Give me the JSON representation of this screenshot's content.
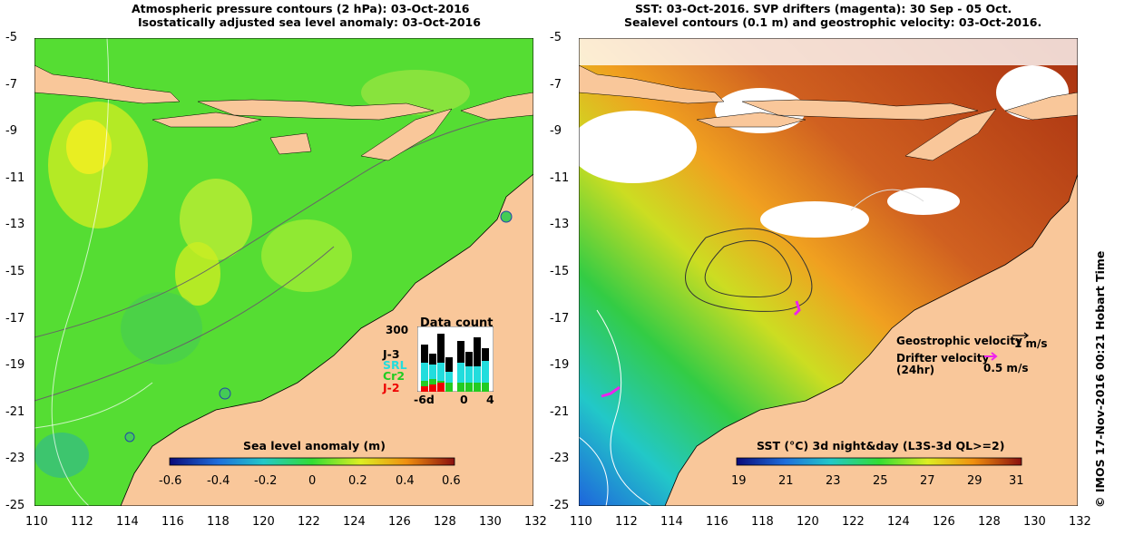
{
  "left_panel": {
    "title_line1": "Atmospheric pressure contours (2 hPa): 03-Oct-2016",
    "title_line2": "Isostatically adjusted sea level anomaly: 03-Oct-2016",
    "colorbar": {
      "label": "Sea level anomaly (m)",
      "ticks": [
        "-0.6",
        "-0.4",
        "-0.2",
        "0",
        "0.2",
        "0.4",
        "0.6"
      ],
      "min": -0.6,
      "max": 0.6
    },
    "data_count": {
      "title": "Data count",
      "ymax_label": "300",
      "missions": [
        {
          "name": "J-3",
          "color": "#000000"
        },
        {
          "name": "SRL",
          "color": "#22dddd"
        },
        {
          "name": "Cr2",
          "color": "#22cc22"
        },
        {
          "name": "J-2",
          "color": "#ee0000"
        }
      ],
      "x_ticks": [
        "-6d",
        "0",
        "4"
      ]
    }
  },
  "right_panel": {
    "title_line1": "SST: 03-Oct-2016. SVP drifters (magenta): 30 Sep - 05 Oct.",
    "title_line2": "Sealevel contours (0.1 m) and geostrophic velocity: 03-Oct-2016.",
    "colorbar": {
      "label": "SST (°C) 3d night&day (L3S-3d QL>=2)",
      "ticks": [
        "19",
        "21",
        "23",
        "25",
        "27",
        "29",
        "31"
      ],
      "min": 19,
      "max": 31
    },
    "legend": {
      "geo_label": "Geostrophic velocity",
      "geo_value": "1 m/s",
      "drifter_label_1": "Drifter velocity",
      "drifter_label_2": "(24hr)",
      "drifter_value": "0.5 m/s"
    }
  },
  "axes": {
    "lon_ticks": [
      "110",
      "112",
      "114",
      "116",
      "118",
      "120",
      "122",
      "124",
      "126",
      "128",
      "130",
      "132"
    ],
    "lat_ticks": [
      "-5",
      "-7",
      "-9",
      "-11",
      "-13",
      "-15",
      "-17",
      "-19",
      "-21",
      "-23",
      "-25"
    ],
    "lon_range": [
      110,
      132
    ],
    "lat_range": [
      -25,
      -5
    ]
  },
  "credit": "© IMOS 17-Nov-2016 00:21 Hobart Time",
  "colors": {
    "land": "#f9c79a",
    "sla_ocean": "#55dd33",
    "sst_warm": "#c8501a"
  }
}
